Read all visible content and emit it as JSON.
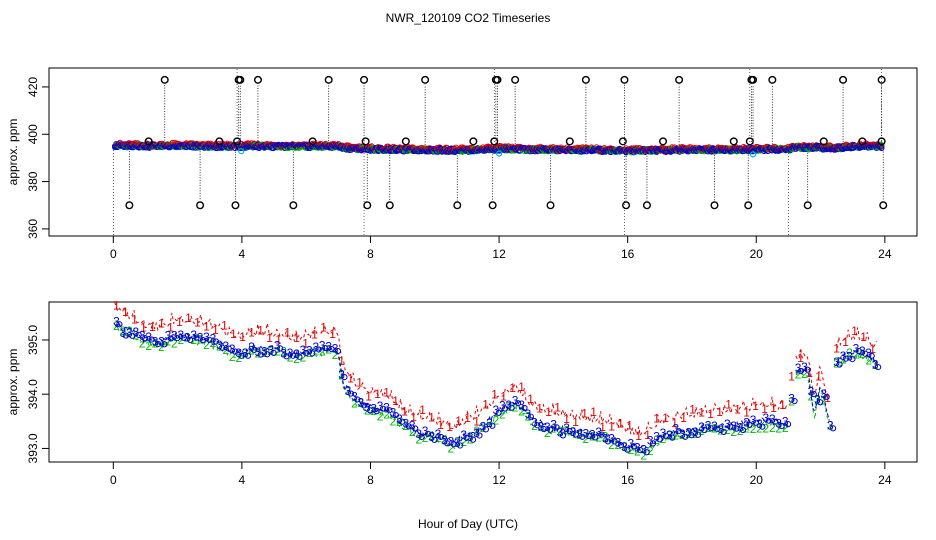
{
  "chart_data": {
    "title": "NWR_120109  CO2 Timeseries",
    "xlabel": "Hour of Day (UTC)",
    "colors": {
      "series1": "#dd0000",
      "series2": "#00bb00",
      "series3": "#0000cc",
      "cyan": "#00bbcc",
      "outlier": "#000000",
      "axis": "#000000"
    },
    "panels": [
      {
        "type": "scatter",
        "ylabel": "approx. ppm",
        "xlim": [
          -2,
          25
        ],
        "ylim": [
          357,
          428
        ],
        "xticks": [
          0,
          4,
          8,
          12,
          16,
          20,
          24
        ],
        "yticks": [
          360,
          380,
          400,
          420
        ],
        "x_tick_labels": [
          "0",
          "4",
          "8",
          "12",
          "16",
          "20",
          "24"
        ],
        "y_tick_labels": [
          "360",
          "380",
          "400",
          "420"
        ],
        "baseline": [
          [
            0.0,
            395.3
          ],
          [
            1.0,
            395.0
          ],
          [
            2.0,
            395.2
          ],
          [
            3.0,
            394.9
          ],
          [
            3.9,
            394.8
          ],
          [
            4.3,
            395.0
          ],
          [
            5.0,
            394.9
          ],
          [
            6.0,
            394.9
          ],
          [
            7.0,
            394.9
          ],
          [
            7.2,
            394.2
          ],
          [
            8.0,
            393.7
          ],
          [
            9.0,
            393.4
          ],
          [
            10.0,
            393.3
          ],
          [
            11.0,
            393.2
          ],
          [
            12.0,
            393.8
          ],
          [
            13.0,
            393.5
          ],
          [
            14.0,
            393.3
          ],
          [
            15.0,
            393.3
          ],
          [
            16.0,
            393.0
          ],
          [
            17.0,
            393.2
          ],
          [
            18.0,
            393.4
          ],
          [
            19.0,
            393.4
          ],
          [
            20.0,
            393.5
          ],
          [
            21.0,
            393.6
          ],
          [
            21.2,
            394.5
          ],
          [
            22.0,
            394.3
          ],
          [
            22.4,
            394.0
          ],
          [
            23.0,
            394.8
          ],
          [
            23.8,
            394.9
          ]
        ],
        "outliers_high": [
          1.6,
          3.9,
          3.95,
          4.5,
          6.7,
          7.8,
          9.7,
          11.9,
          11.95,
          12.5,
          14.7,
          15.9,
          17.6,
          19.85,
          19.9,
          20.5,
          22.7,
          23.9
        ],
        "outliers_low": [
          0.5,
          2.7,
          3.8,
          5.6,
          7.9,
          8.6,
          10.7,
          11.8,
          13.6,
          15.95,
          16.6,
          18.7,
          19.75,
          21.6,
          23.95
        ],
        "outliers_mid": [
          1.1,
          3.3,
          3.85,
          6.2,
          7.85,
          9.1,
          11.2,
          11.85,
          14.2,
          15.85,
          17.1,
          19.3,
          19.8,
          22.1,
          23.3,
          23.9
        ],
        "cyan_points": [
          3.98,
          12.0,
          19.9
        ]
      },
      {
        "type": "line-symbols",
        "ylabel": "approx. ppm",
        "xlim": [
          -2,
          25
        ],
        "ylim": [
          392.75,
          395.7
        ],
        "xticks": [
          0,
          4,
          8,
          12,
          16,
          20,
          24
        ],
        "yticks": [
          393.0,
          394.0,
          395.0
        ],
        "x_tick_labels": [
          "0",
          "4",
          "8",
          "12",
          "16",
          "20",
          "24"
        ],
        "y_tick_labels": [
          "393.0",
          "394.0",
          "395.0"
        ],
        "series": [
          {
            "name": "1",
            "symbol": "1",
            "offset": 0.28
          },
          {
            "name": "2",
            "symbol": "2",
            "offset": -0.07
          },
          {
            "name": "3",
            "symbol": "3",
            "offset": 0.0
          }
        ],
        "baseline": [
          [
            0.0,
            395.35
          ],
          [
            0.3,
            395.2
          ],
          [
            0.6,
            395.15
          ],
          [
            1.0,
            395.0
          ],
          [
            1.5,
            394.95
          ],
          [
            2.0,
            395.1
          ],
          [
            2.5,
            395.05
          ],
          [
            3.0,
            395.0
          ],
          [
            3.5,
            394.85
          ],
          [
            3.9,
            394.75
          ],
          [
            4.3,
            394.85
          ],
          [
            5.0,
            394.85
          ],
          [
            5.5,
            394.75
          ],
          [
            6.0,
            394.8
          ],
          [
            6.7,
            394.85
          ],
          [
            7.0,
            394.8
          ],
          [
            7.15,
            394.2
          ],
          [
            7.5,
            393.9
          ],
          [
            8.0,
            393.75
          ],
          [
            8.5,
            393.7
          ],
          [
            9.0,
            393.45
          ],
          [
            9.5,
            393.3
          ],
          [
            10.0,
            393.25
          ],
          [
            10.6,
            393.1
          ],
          [
            11.0,
            393.25
          ],
          [
            11.5,
            393.4
          ],
          [
            12.0,
            393.7
          ],
          [
            12.5,
            393.85
          ],
          [
            13.0,
            393.55
          ],
          [
            13.5,
            393.4
          ],
          [
            14.0,
            393.35
          ],
          [
            14.5,
            393.3
          ],
          [
            15.0,
            393.25
          ],
          [
            15.5,
            393.2
          ],
          [
            16.0,
            393.05
          ],
          [
            16.5,
            393.0
          ],
          [
            17.0,
            393.2
          ],
          [
            17.5,
            393.3
          ],
          [
            18.0,
            393.35
          ],
          [
            18.5,
            393.4
          ],
          [
            19.0,
            393.4
          ],
          [
            19.5,
            393.45
          ],
          [
            20.0,
            393.5
          ],
          [
            20.5,
            393.5
          ],
          [
            21.0,
            393.45
          ],
          [
            21.2,
            394.4
          ],
          [
            21.6,
            394.45
          ],
          [
            21.8,
            393.6
          ],
          [
            22.0,
            394.2
          ],
          [
            22.3,
            393.45
          ],
          [
            22.5,
            394.6
          ],
          [
            23.0,
            394.8
          ],
          [
            23.4,
            394.75
          ],
          [
            23.7,
            394.6
          ]
        ],
        "gaps": [
          [
            21.0,
            21.2
          ],
          [
            22.3,
            22.5
          ]
        ]
      }
    ]
  }
}
